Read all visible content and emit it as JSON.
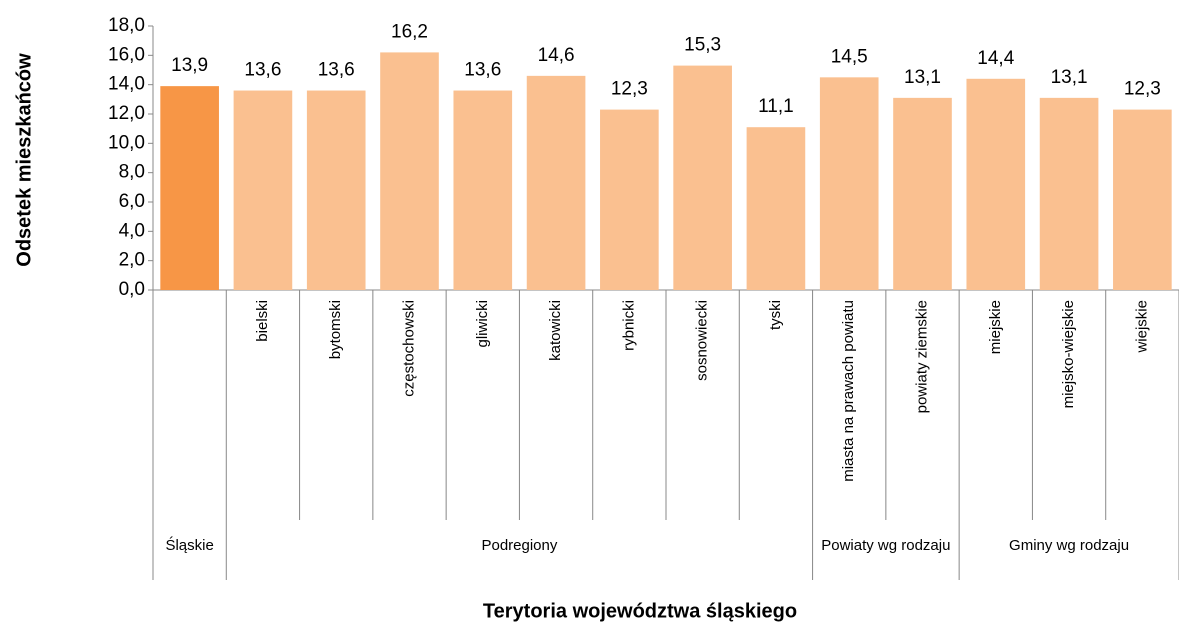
{
  "chart_data": {
    "type": "bar",
    "y_label": "Odsetek mieszkańców",
    "x_label": "Terytoria województwa śląskiego",
    "categories": [
      null,
      "bielski",
      "bytomski",
      "częstochowski",
      "gliwicki",
      "katowicki",
      "rybnicki",
      "sosnowiecki",
      "tyski",
      "miasta na prawach powiatu",
      "powiaty ziemskie",
      "miejskie",
      "miejsko-wiejskie",
      "wiejskie"
    ],
    "groups": [
      {
        "name": "Śląskie",
        "size": 1
      },
      {
        "name": "Podregiony",
        "size": 8
      },
      {
        "name": "Powiaty wg rodzaju",
        "size": 2
      },
      {
        "name": "Gminy wg rodzaju",
        "size": 3
      }
    ],
    "values": [
      13.9,
      13.6,
      13.6,
      16.2,
      13.6,
      14.6,
      12.3,
      15.3,
      11.1,
      14.5,
      13.1,
      14.4,
      13.1,
      12.3
    ],
    "value_labels": [
      "13,9",
      "13,6",
      "13,6",
      "16,2",
      "13,6",
      "14,6",
      "12,3",
      "15,3",
      "11,1",
      "14,5",
      "13,1",
      "14,4",
      "13,1",
      "12,3"
    ],
    "colors": [
      "#f79646",
      "#fac090",
      "#fac090",
      "#fac090",
      "#fac090",
      "#fac090",
      "#fac090",
      "#fac090",
      "#fac090",
      "#fac090",
      "#fac090",
      "#fac090",
      "#fac090",
      "#fac090"
    ],
    "ylim": [
      0,
      18
    ],
    "yticks": [
      {
        "value": 0,
        "label": "0,0"
      },
      {
        "value": 2,
        "label": "2,0"
      },
      {
        "value": 4,
        "label": "4,0"
      },
      {
        "value": 6,
        "label": "6,0"
      },
      {
        "value": 8,
        "label": "8,0"
      },
      {
        "value": 10,
        "label": "10,0"
      },
      {
        "value": 12,
        "label": "12,0"
      },
      {
        "value": 14,
        "label": "14,0"
      },
      {
        "value": 16,
        "label": "16,0"
      },
      {
        "value": 18,
        "label": "18,0"
      }
    ],
    "grid": false
  }
}
